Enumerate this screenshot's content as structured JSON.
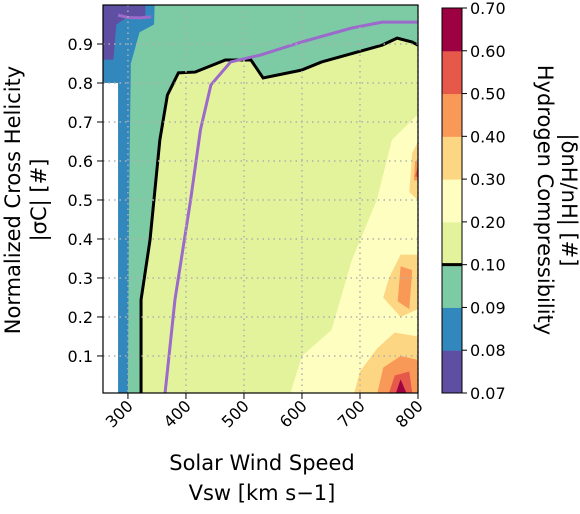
{
  "chart_data": {
    "type": "contour",
    "xlabel": "Solar Wind Speed",
    "xlabel2": "Vsw [km s−1]",
    "ylabel": "Normalized Cross Helicity",
    "ylabel2": "|σC| [#]",
    "colorbar_label": "Hydrogen Compressibility",
    "colorbar_label2": "|δnH/nH| [#]",
    "xlim": [
      257,
      800
    ],
    "ylim": [
      0.005,
      1.0
    ],
    "xticks": [
      300,
      400,
      500,
      600,
      700,
      800
    ],
    "yticks": [
      0.1,
      0.2,
      0.3,
      0.4,
      0.5,
      0.6,
      0.7,
      0.8,
      0.9
    ],
    "grid": true,
    "colorbar_ticks": [
      {
        "value": 0.07,
        "label": "0.07"
      },
      {
        "value": 0.08,
        "label": "0.08"
      },
      {
        "value": 0.09,
        "label": "0.09"
      },
      {
        "value": 0.1,
        "label": "0.10"
      },
      {
        "value": 0.2,
        "label": "0.20"
      },
      {
        "value": 0.3,
        "label": "0.30"
      },
      {
        "value": 0.4,
        "label": "0.40"
      },
      {
        "value": 0.5,
        "label": "0.50"
      },
      {
        "value": 0.6,
        "label": "0.60"
      },
      {
        "value": 0.7,
        "label": "0.70"
      }
    ],
    "colorbar_colors": [
      "#5e4fa2",
      "#3288bd",
      "#7ccba4",
      "#e3f39b",
      "#fefec0",
      "#fdd683",
      "#f99958",
      "#e5584a",
      "#9e0142"
    ],
    "colorbar_line": 0.1,
    "regions": [
      {
        "level": 0.1,
        "x": [
          283,
          800,
          800,
          283
        ],
        "y": [
          0.005,
          0.005,
          1.0,
          1.0
        ]
      },
      {
        "level": 0.09,
        "x": [
          283,
          322.6,
          322.6,
          338,
          355,
          368,
          387,
          416,
          468,
          512,
          533,
          599,
          634,
          738,
          764,
          790,
          800,
          800,
          283
        ],
        "y": [
          0.005,
          0.005,
          0.244,
          0.397,
          0.654,
          0.769,
          0.826,
          0.828,
          0.859,
          0.859,
          0.813,
          0.833,
          0.854,
          0.897,
          0.915,
          0.905,
          0.897,
          1.0,
          1.0
        ]
      },
      {
        "level": 0.08,
        "x": [
          283,
          300,
          302,
          305,
          320,
          345,
          346,
          257,
          257,
          283
        ],
        "y": [
          0.005,
          0.005,
          0.5,
          0.85,
          0.93,
          0.95,
          1.0,
          1.0,
          0.8,
          0.8
        ]
      },
      {
        "level": 0.07,
        "x": [
          257,
          275,
          280,
          300,
          330,
          330,
          257
        ],
        "y": [
          0.86,
          0.86,
          0.95,
          0.97,
          0.97,
          1.0,
          1.0
        ]
      },
      {
        "level": 0.2,
        "x": [
          580,
          600,
          651,
          686,
          729,
          755,
          790,
          800,
          800
        ],
        "y": [
          0.005,
          0.1,
          0.167,
          0.346,
          0.5,
          0.654,
          0.705,
          0.72,
          0.005
        ]
      },
      {
        "level": 0.3,
        "x": [
          690,
          700,
          730,
          760,
          800,
          800
        ],
        "y": [
          0.005,
          0.06,
          0.12,
          0.16,
          0.15,
          0.005
        ]
      },
      {
        "level": 0.3,
        "x": [
          740,
          770,
          800,
          800,
          770,
          750
        ],
        "y": [
          0.25,
          0.2,
          0.22,
          0.36,
          0.36,
          0.3
        ]
      },
      {
        "level": 0.3,
        "x": [
          785,
          800,
          800,
          790
        ],
        "y": [
          0.52,
          0.5,
          0.65,
          0.62
        ]
      },
      {
        "level": 0.4,
        "x": [
          730,
          740,
          770,
          800,
          800
        ],
        "y": [
          0.005,
          0.07,
          0.1,
          0.09,
          0.005
        ]
      },
      {
        "level": 0.4,
        "x": [
          765,
          785,
          790,
          770
        ],
        "y": [
          0.24,
          0.22,
          0.32,
          0.33
        ]
      },
      {
        "level": 0.4,
        "x": [
          793,
          800,
          800,
          795
        ],
        "y": [
          0.55,
          0.55,
          0.6,
          0.6
        ]
      },
      {
        "level": 0.5,
        "x": [
          750,
          760,
          785,
          790
        ],
        "y": [
          0.005,
          0.05,
          0.06,
          0.005
        ]
      },
      {
        "level": 0.5,
        "x": [
          795,
          800,
          800
        ],
        "y": [
          0.56,
          0.56,
          0.59
        ]
      },
      {
        "level": 0.6,
        "x": [
          762,
          770,
          780
        ],
        "y": [
          0.005,
          0.04,
          0.005
        ]
      }
    ],
    "lines": [
      {
        "color": "#000000",
        "x": [
          322.6,
          322.6,
          338,
          355,
          368,
          387,
          416,
          468,
          512,
          533,
          599,
          634,
          738,
          764,
          790,
          800
        ],
        "y": [
          0.005,
          0.244,
          0.397,
          0.654,
          0.769,
          0.826,
          0.828,
          0.859,
          0.859,
          0.813,
          0.833,
          0.854,
          0.897,
          0.915,
          0.905,
          0.897
        ]
      },
      {
        "color": "#9b6acb",
        "x": [
          364,
          381,
          408,
          425,
          443,
          477,
          529,
          599,
          686,
          738,
          800,
          null,
          283,
          300,
          321,
          340
        ],
        "y": [
          0.005,
          0.244,
          0.5,
          0.68,
          0.795,
          0.854,
          0.872,
          0.905,
          0.941,
          0.956,
          0.956,
          null,
          0.974,
          0.968,
          0.967,
          0.97
        ]
      }
    ]
  }
}
